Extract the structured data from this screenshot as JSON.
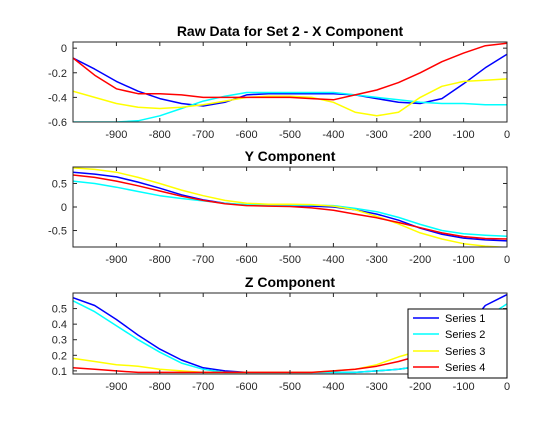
{
  "figure": {
    "background": "#ffffff"
  },
  "colors": {
    "series_1": "#0000ff",
    "series_2": "#00ffff",
    "series_3": "#ffff00",
    "series_4": "#ff0000"
  },
  "chart_data": [
    {
      "type": "line",
      "title": "Raw Data for Set 2 - X Component",
      "xlabel": "",
      "ylabel": "",
      "xlim": [
        -1000,
        0
      ],
      "ylim": [
        -0.6,
        0.05
      ],
      "xticks": [
        -900,
        -800,
        -700,
        -600,
        -500,
        -400,
        -300,
        -200,
        -100,
        0
      ],
      "yticks": [
        -0.6,
        -0.4,
        -0.2,
        0
      ],
      "ytick_labels": [
        "-0.6",
        "-0.4",
        "-0.2",
        "0"
      ],
      "grid": false,
      "series": [
        {
          "x": [
            -1000,
            -950,
            -900,
            -850,
            -800,
            -750,
            -700,
            -650,
            -600,
            -550,
            -500,
            -450,
            -400,
            -350,
            -300,
            -250,
            -200,
            -150,
            -100,
            -50,
            0
          ],
          "y": [
            -0.08,
            -0.17,
            -0.27,
            -0.35,
            -0.41,
            -0.45,
            -0.47,
            -0.44,
            -0.38,
            -0.37,
            -0.37,
            -0.37,
            -0.37,
            -0.38,
            -0.41,
            -0.44,
            -0.45,
            -0.41,
            -0.29,
            -0.16,
            -0.05
          ]
        },
        {
          "x": [
            -1000,
            -950,
            -900,
            -850,
            -800,
            -750,
            -700,
            -650,
            -600,
            -550,
            -500,
            -450,
            -400,
            -350,
            -300,
            -250,
            -200,
            -150,
            -100,
            -50,
            0
          ],
          "y": [
            -0.6,
            -0.6,
            -0.6,
            -0.59,
            -0.55,
            -0.49,
            -0.43,
            -0.39,
            -0.36,
            -0.36,
            -0.36,
            -0.36,
            -0.36,
            -0.38,
            -0.4,
            -0.42,
            -0.44,
            -0.45,
            -0.45,
            -0.46,
            -0.46
          ]
        },
        {
          "x": [
            -1000,
            -950,
            -900,
            -850,
            -800,
            -750,
            -700,
            -650,
            -600,
            -550,
            -500,
            -450,
            -400,
            -350,
            -300,
            -250,
            -200,
            -150,
            -100,
            -50,
            0
          ],
          "y": [
            -0.35,
            -0.4,
            -0.45,
            -0.48,
            -0.49,
            -0.48,
            -0.46,
            -0.43,
            -0.4,
            -0.39,
            -0.39,
            -0.4,
            -0.44,
            -0.52,
            -0.55,
            -0.52,
            -0.4,
            -0.31,
            -0.27,
            -0.26,
            -0.25
          ]
        },
        {
          "x": [
            -1000,
            -950,
            -900,
            -850,
            -800,
            -750,
            -700,
            -650,
            -600,
            -550,
            -500,
            -450,
            -400,
            -350,
            -300,
            -250,
            -200,
            -150,
            -100,
            -50,
            0
          ],
          "y": [
            -0.08,
            -0.22,
            -0.33,
            -0.37,
            -0.37,
            -0.38,
            -0.4,
            -0.4,
            -0.4,
            -0.4,
            -0.4,
            -0.41,
            -0.42,
            -0.38,
            -0.34,
            -0.28,
            -0.2,
            -0.11,
            -0.04,
            0.02,
            0.04
          ]
        }
      ]
    },
    {
      "type": "line",
      "title": "Y Component",
      "xlabel": "",
      "ylabel": "",
      "xlim": [
        -1000,
        0
      ],
      "ylim": [
        -0.85,
        0.85
      ],
      "xticks": [
        -900,
        -800,
        -700,
        -600,
        -500,
        -400,
        -300,
        -200,
        -100,
        0
      ],
      "yticks": [
        -0.5,
        0,
        0.5
      ],
      "ytick_labels": [
        "-0.5",
        "0",
        "0.5"
      ],
      "grid": false,
      "series": [
        {
          "x": [
            -1000,
            -950,
            -900,
            -850,
            -800,
            -750,
            -700,
            -650,
            -600,
            -550,
            -500,
            -450,
            -400,
            -350,
            -300,
            -250,
            -200,
            -150,
            -100,
            -50,
            0
          ],
          "y": [
            0.74,
            0.7,
            0.64,
            0.53,
            0.4,
            0.26,
            0.15,
            0.08,
            0.04,
            0.03,
            0.03,
            0.02,
            0.0,
            -0.06,
            -0.15,
            -0.28,
            -0.45,
            -0.58,
            -0.66,
            -0.7,
            -0.72
          ]
        },
        {
          "x": [
            -1000,
            -950,
            -900,
            -850,
            -800,
            -750,
            -700,
            -650,
            -600,
            -550,
            -500,
            -450,
            -400,
            -350,
            -300,
            -250,
            -200,
            -150,
            -100,
            -50,
            0
          ],
          "y": [
            0.55,
            0.5,
            0.42,
            0.33,
            0.24,
            0.18,
            0.13,
            0.08,
            0.05,
            0.04,
            0.04,
            0.04,
            0.03,
            -0.03,
            -0.1,
            -0.22,
            -0.37,
            -0.5,
            -0.57,
            -0.6,
            -0.62
          ]
        },
        {
          "x": [
            -1000,
            -950,
            -900,
            -850,
            -800,
            -750,
            -700,
            -650,
            -600,
            -550,
            -500,
            -450,
            -400,
            -350,
            -300,
            -250,
            -200,
            -150,
            -100,
            -50,
            0
          ],
          "y": [
            0.83,
            0.8,
            0.74,
            0.63,
            0.5,
            0.36,
            0.24,
            0.14,
            0.08,
            0.06,
            0.06,
            0.05,
            0.02,
            -0.06,
            -0.2,
            -0.36,
            -0.55,
            -0.68,
            -0.78,
            -0.83,
            -0.86
          ]
        },
        {
          "x": [
            -1000,
            -950,
            -900,
            -850,
            -800,
            -750,
            -700,
            -650,
            -600,
            -550,
            -500,
            -450,
            -400,
            -350,
            -300,
            -250,
            -200,
            -150,
            -100,
            -50,
            0
          ],
          "y": [
            0.68,
            0.63,
            0.55,
            0.45,
            0.34,
            0.23,
            0.14,
            0.07,
            0.03,
            0.02,
            0.01,
            -0.02,
            -0.07,
            -0.15,
            -0.23,
            -0.33,
            -0.44,
            -0.55,
            -0.63,
            -0.67,
            -0.68
          ]
        }
      ]
    },
    {
      "type": "line",
      "title": "Z Component",
      "xlabel": "",
      "ylabel": "",
      "xlim": [
        -1000,
        0
      ],
      "ylim": [
        0.08,
        0.6
      ],
      "xticks": [
        -900,
        -800,
        -700,
        -600,
        -500,
        -400,
        -300,
        -200,
        -100,
        0
      ],
      "yticks": [
        0.1,
        0.2,
        0.3,
        0.4,
        0.5
      ],
      "ytick_labels": [
        "0.1",
        "0.2",
        "0.3",
        "0.4",
        "0.5"
      ],
      "grid": false,
      "legend": {
        "placement": "bottom-right",
        "entries": [
          "Series 1",
          "Series 2",
          "Series 3",
          "Series 4"
        ]
      },
      "series": [
        {
          "name": "Series 1",
          "x": [
            -1000,
            -950,
            -900,
            -850,
            -800,
            -750,
            -700,
            -650,
            -600,
            -550,
            -500,
            -450,
            -400,
            -350,
            -300,
            -250,
            -200,
            -150,
            -100,
            -50,
            0
          ],
          "y": [
            0.57,
            0.52,
            0.43,
            0.33,
            0.24,
            0.17,
            0.12,
            0.1,
            0.09,
            0.09,
            0.09,
            0.09,
            0.09,
            0.09,
            0.1,
            0.11,
            0.13,
            0.2,
            0.35,
            0.52,
            0.59
          ]
        },
        {
          "name": "Series 2",
          "x": [
            -1000,
            -950,
            -900,
            -850,
            -800,
            -750,
            -700,
            -650,
            -600,
            -550,
            -500,
            -450,
            -400,
            -350,
            -300,
            -250,
            -200,
            -150,
            -100,
            -50,
            0
          ],
          "y": [
            0.55,
            0.48,
            0.39,
            0.3,
            0.22,
            0.15,
            0.11,
            0.09,
            0.09,
            0.09,
            0.09,
            0.09,
            0.09,
            0.09,
            0.1,
            0.11,
            0.13,
            0.19,
            0.3,
            0.44,
            0.53
          ]
        },
        {
          "name": "Series 3",
          "x": [
            -1000,
            -950,
            -900,
            -850,
            -800,
            -750,
            -700,
            -650,
            -600,
            -550,
            -500,
            -450,
            -400,
            -350,
            -300,
            -250,
            -200,
            -150,
            -100,
            -50,
            0
          ],
          "y": [
            0.18,
            0.16,
            0.14,
            0.13,
            0.11,
            0.1,
            0.09,
            0.09,
            0.09,
            0.09,
            0.09,
            0.09,
            0.1,
            0.11,
            0.14,
            0.19,
            0.23,
            0.26,
            0.25,
            0.24,
            0.23
          ]
        },
        {
          "name": "Series 4",
          "x": [
            -1000,
            -950,
            -900,
            -850,
            -800,
            -750,
            -700,
            -650,
            -600,
            -550,
            -500,
            -450,
            -400,
            -350,
            -300,
            -250,
            -200,
            -150,
            -100,
            -50,
            0
          ],
          "y": [
            0.12,
            0.11,
            0.1,
            0.09,
            0.09,
            0.09,
            0.09,
            0.09,
            0.09,
            0.09,
            0.09,
            0.09,
            0.1,
            0.11,
            0.13,
            0.16,
            0.2,
            0.24,
            0.26,
            0.27,
            0.28
          ]
        }
      ]
    }
  ]
}
